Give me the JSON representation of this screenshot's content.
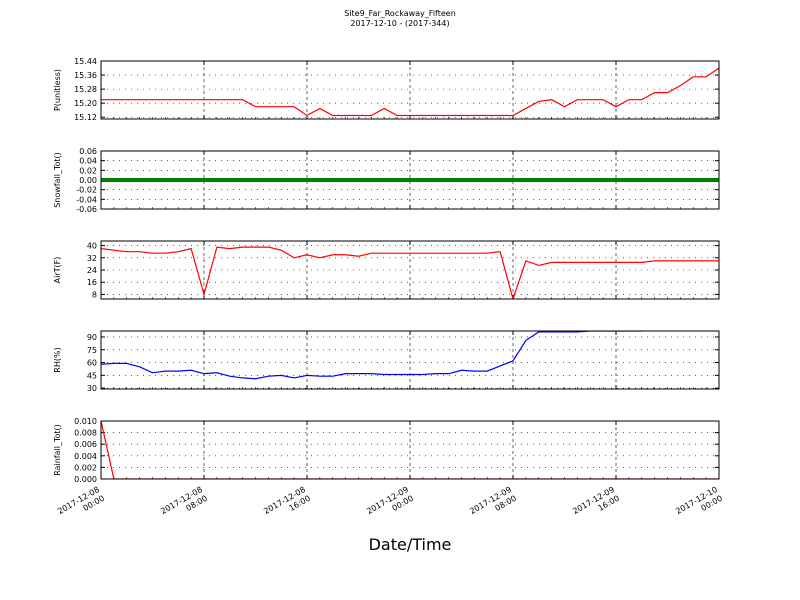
{
  "chart_data": {
    "type": "line",
    "title": "Site9_Far_Rockaway_Fifteen",
    "subtitle": "2017-12-10 - (2017-344)",
    "x_label": "Date/Time",
    "grid": true,
    "x": [
      "2017-12-08 00:00",
      "2017-12-08 01:00",
      "2017-12-08 02:00",
      "2017-12-08 03:00",
      "2017-12-08 04:00",
      "2017-12-08 05:00",
      "2017-12-08 06:00",
      "2017-12-08 07:00",
      "2017-12-08 08:00",
      "2017-12-08 09:00",
      "2017-12-08 10:00",
      "2017-12-08 11:00",
      "2017-12-08 12:00",
      "2017-12-08 13:00",
      "2017-12-08 14:00",
      "2017-12-08 15:00",
      "2017-12-08 16:00",
      "2017-12-08 17:00",
      "2017-12-08 18:00",
      "2017-12-08 19:00",
      "2017-12-08 20:00",
      "2017-12-08 21:00",
      "2017-12-08 22:00",
      "2017-12-08 23:00",
      "2017-12-09 00:00",
      "2017-12-09 01:00",
      "2017-12-09 02:00",
      "2017-12-09 03:00",
      "2017-12-09 04:00",
      "2017-12-09 05:00",
      "2017-12-09 06:00",
      "2017-12-09 07:00",
      "2017-12-09 08:00",
      "2017-12-09 09:00",
      "2017-12-09 10:00",
      "2017-12-09 11:00",
      "2017-12-09 12:00",
      "2017-12-09 13:00",
      "2017-12-09 14:00",
      "2017-12-09 15:00",
      "2017-12-09 16:00",
      "2017-12-09 17:00",
      "2017-12-09 18:00",
      "2017-12-09 19:00",
      "2017-12-09 20:00",
      "2017-12-09 21:00",
      "2017-12-09 22:00",
      "2017-12-09 23:00",
      "2017-12-10 00:00"
    ],
    "xlim": [
      "2017-12-08 00:00",
      "2017-12-10 00:00"
    ],
    "xticks": [
      "2017-12-08 00:00",
      "2017-12-08 08:00",
      "2017-12-08 16:00",
      "2017-12-09 00:00",
      "2017-12-09 08:00",
      "2017-12-09 16:00",
      "2017-12-10 00:00"
    ],
    "panels": [
      {
        "ylabel": "P(unitless)",
        "ylim": [
          15.11,
          15.44
        ],
        "yticks": [
          15.12,
          {
            "value": 15.2,
            "label": "15.20"
          },
          15.28,
          15.36,
          15.44
        ],
        "series": [
          {
            "color": "#ff0000",
            "values": [
              15.22,
              15.22,
              15.22,
              15.22,
              15.22,
              15.22,
              15.22,
              15.22,
              15.22,
              15.22,
              15.22,
              15.22,
              15.18,
              15.18,
              15.18,
              15.18,
              15.13,
              15.17,
              15.13,
              15.13,
              15.13,
              15.13,
              15.17,
              15.13,
              15.13,
              15.13,
              15.13,
              15.13,
              15.13,
              15.13,
              15.13,
              15.13,
              15.13,
              15.17,
              15.21,
              15.22,
              15.18,
              15.22,
              15.22,
              15.22,
              15.18,
              15.22,
              15.22,
              15.26,
              15.26,
              15.3,
              15.35,
              15.35,
              15.4
            ]
          }
        ]
      },
      {
        "ylabel": "Snowfall_Tot()",
        "ylim": [
          -0.06,
          0.06
        ],
        "yticks": [
          -0.06,
          -0.04,
          -0.02,
          {
            "value": 0,
            "label": "0.00"
          },
          0.02,
          0.04,
          0.06
        ],
        "series": [
          {
            "color": "#008000",
            "values": [
              0,
              0,
              0,
              0,
              0,
              0,
              0,
              0,
              0,
              0,
              0,
              0,
              0,
              0,
              0,
              0,
              0,
              0,
              0,
              0,
              0,
              0,
              0,
              0,
              0,
              0,
              0,
              0,
              0,
              0,
              0,
              0,
              0,
              0,
              0,
              0,
              0,
              0,
              0,
              0,
              0,
              0,
              0,
              0,
              0,
              0,
              0,
              0,
              0
            ]
          }
        ]
      },
      {
        "ylabel": "AirT(F)",
        "ylim": [
          5,
          43
        ],
        "yticks": [
          8,
          16,
          24,
          32,
          40
        ],
        "series": [
          {
            "color": "#ff0000",
            "values": [
              38,
              37,
              36,
              36,
              35,
              35,
              36,
              38,
              8,
              39,
              38,
              39,
              39,
              39,
              37,
              32,
              34,
              32,
              34,
              34,
              33,
              35,
              35,
              35,
              35,
              35,
              35,
              35,
              35,
              35,
              35,
              36,
              5,
              30,
              27,
              29,
              29,
              29,
              29,
              29,
              29,
              29,
              29,
              30,
              30,
              30,
              30,
              30,
              30
            ]
          }
        ]
      },
      {
        "ylabel": "RH(%)",
        "ylim": [
          29,
          97
        ],
        "yticks": [
          30,
          45,
          60,
          75,
          90
        ],
        "series": [
          {
            "color": "#0000ff",
            "values": [
              58,
              59,
              59,
              55,
              48,
              50,
              50,
              51,
              47,
              48,
              44,
              42,
              41,
              44,
              45,
              42,
              45,
              44,
              44,
              47,
              47,
              47,
              46,
              46,
              46,
              46,
              47,
              47,
              51,
              50,
              50,
              56,
              62,
              86,
              96,
              96,
              96,
              96,
              97,
              97,
              97,
              97,
              97,
              null,
              null,
              null,
              null,
              null,
              null
            ]
          }
        ]
      },
      {
        "ylabel": "Rainfall_Tot()",
        "ylim": [
          0,
          0.01
        ],
        "yticks": [
          {
            "value": 0,
            "label": "0.000"
          },
          0.002,
          0.004,
          0.006,
          0.008,
          {
            "value": 0.01,
            "label": "0.010"
          }
        ],
        "series": [
          {
            "color": "#ff0000",
            "values": [
              0.01,
              0,
              0,
              0,
              0,
              0,
              0,
              0,
              0,
              0,
              0,
              0,
              0,
              0,
              0,
              0,
              0,
              0,
              0,
              0,
              0,
              0,
              0,
              0,
              0,
              0,
              0,
              0,
              0,
              0,
              0,
              0,
              0,
              0,
              0,
              0,
              0,
              0,
              0,
              0,
              0,
              0,
              0,
              0,
              0,
              0,
              0,
              0,
              0
            ]
          }
        ]
      }
    ]
  }
}
